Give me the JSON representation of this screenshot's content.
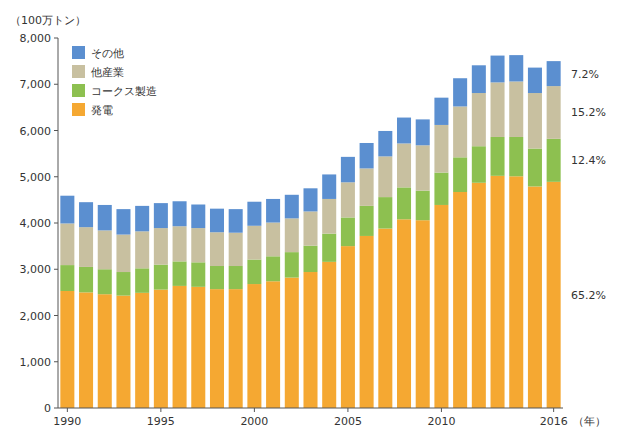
{
  "chart_data": {
    "type": "bar",
    "stacked": true,
    "x_label": "（年）",
    "y_label": "（100万トン）",
    "categories": [
      "1990",
      null,
      null,
      null,
      null,
      "1995",
      null,
      null,
      null,
      null,
      "2000",
      null,
      null,
      null,
      null,
      "2005",
      null,
      null,
      null,
      null,
      "2010",
      null,
      null,
      null,
      null,
      null,
      "2016"
    ],
    "series": [
      {
        "name": "発電",
        "color": "#F5A832",
        "values": [
          2530,
          2500,
          2460,
          2430,
          2490,
          2560,
          2640,
          2620,
          2570,
          2570,
          2680,
          2740,
          2820,
          2940,
          3160,
          3500,
          3720,
          3880,
          4080,
          4060,
          4390,
          4670,
          4870,
          5020,
          5010,
          4790,
          4890
        ]
      },
      {
        "name": "コークス製造",
        "color": "#8DC050",
        "values": [
          560,
          550,
          540,
          510,
          530,
          540,
          530,
          530,
          500,
          500,
          530,
          540,
          550,
          570,
          610,
          620,
          650,
          680,
          690,
          640,
          700,
          750,
          790,
          840,
          850,
          820,
          930
        ]
      },
      {
        "name": "他産業",
        "color": "#C8C0A0",
        "values": [
          900,
          860,
          840,
          810,
          800,
          790,
          760,
          740,
          730,
          720,
          730,
          730,
          730,
          740,
          750,
          760,
          810,
          880,
          950,
          980,
          1030,
          1100,
          1150,
          1180,
          1200,
          1200,
          1140
        ]
      },
      {
        "name": "その他",
        "color": "#5B8FD0",
        "values": [
          600,
          540,
          550,
          550,
          550,
          540,
          540,
          510,
          510,
          510,
          520,
          510,
          510,
          500,
          530,
          550,
          550,
          550,
          560,
          560,
          590,
          610,
          600,
          580,
          570,
          550,
          540
        ]
      }
    ],
    "annotations": [
      "65.2%",
      "12.4%",
      "15.2%",
      "7.2%"
    ],
    "ylim": [
      0,
      8000
    ],
    "yticks": [
      0,
      {
        "value": 1000,
        "label": "1,000"
      },
      {
        "value": 2000,
        "label": "2,000"
      },
      {
        "value": 3000,
        "label": "3,000"
      },
      {
        "value": 4000,
        "label": "4,000"
      },
      {
        "value": 5000,
        "label": "5,000"
      },
      {
        "value": 6000,
        "label": "6,000"
      },
      {
        "value": 7000,
        "label": "7,000"
      },
      {
        "value": 8000,
        "label": "8,000"
      }
    ],
    "grid": false,
    "legend": "upper left"
  }
}
